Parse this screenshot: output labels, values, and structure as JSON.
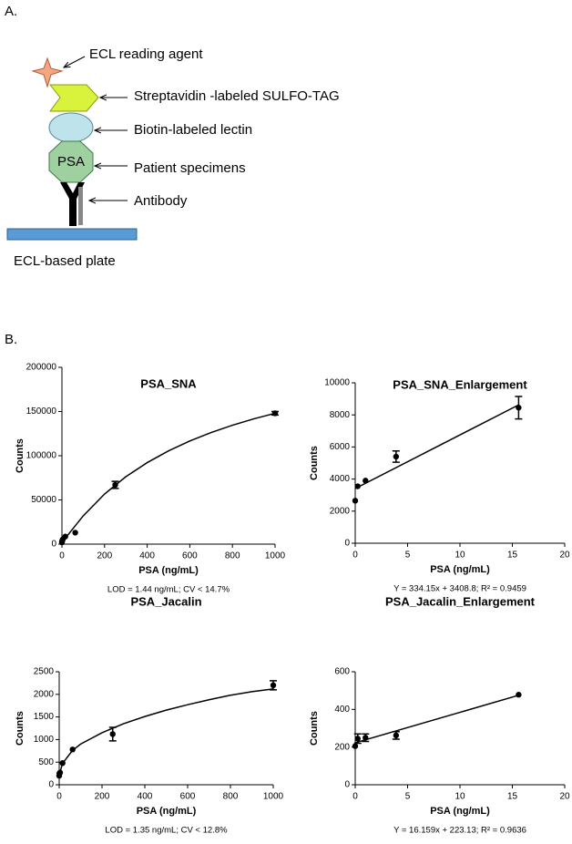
{
  "panel_a": {
    "label": "A.",
    "reading_agent": "ECL reading agent",
    "tag": "Streptavidin -labeled SULFO-TAG",
    "lectin": "Biotin-labeled lectin",
    "specimens": "Patient specimens",
    "psa": "PSA",
    "antibody": "Antibody",
    "plate": "ECL-based plate"
  },
  "panel_b": {
    "label": "B."
  },
  "chart_data": [
    {
      "type": "scatter",
      "title": "PSA_SNA",
      "x_label": "PSA (ng/mL)",
      "y_label": "Counts",
      "note": "LOD =  1.44 ng/mL; CV < 14.7%",
      "color": "#000000",
      "xlim": [
        0,
        1000
      ],
      "xticks": [
        0,
        200,
        400,
        600,
        800,
        1000
      ],
      "ylim": [
        0,
        200000
      ],
      "yticks": [
        0,
        50000,
        100000,
        150000,
        200000
      ],
      "x": [
        0,
        1,
        4,
        15.6,
        62.5,
        250,
        1000
      ],
      "values": [
        2000,
        3600,
        5400,
        8500,
        13000,
        67000,
        148000
      ],
      "errors": [
        null,
        null,
        null,
        null,
        null,
        4000,
        2000
      ],
      "fit": {
        "x": [
          0,
          100,
          200,
          300,
          400,
          500,
          600,
          700,
          800,
          900,
          1000
        ],
        "values": [
          2000,
          32000,
          56700,
          76300,
          92200,
          105500,
          116700,
          126200,
          134500,
          141700,
          148000
        ]
      }
    },
    {
      "type": "scatter",
      "title": "PSA_SNA_Enlargement",
      "x_label": "PSA (ng/mL)",
      "y_label": "Counts",
      "note": "Y = 334.15x + 3408.8; R² = 0.9459",
      "color": "#000000",
      "xlim": [
        0,
        20
      ],
      "xticks": [
        0,
        5,
        10,
        15,
        20
      ],
      "ylim": [
        0,
        10000
      ],
      "yticks": [
        0,
        2000,
        4000,
        6000,
        8000,
        10000
      ],
      "x": [
        0,
        0.24,
        0.98,
        3.9,
        15.6
      ],
      "values": [
        2650,
        3550,
        3900,
        5400,
        8450
      ],
      "errors": [
        null,
        null,
        null,
        350,
        700
      ],
      "fit": {
        "x": [
          0,
          15.6
        ],
        "values": [
          3409,
          8622
        ]
      }
    },
    {
      "type": "scatter",
      "title": "PSA_Jacalin",
      "x_label": "PSA (ng/mL)",
      "y_label": "Counts",
      "note": "LOD = 1.35 ng/mL; CV < 12.8%",
      "color": "#000000",
      "xlim": [
        0,
        1000
      ],
      "xticks": [
        0,
        200,
        400,
        600,
        800,
        1000
      ],
      "ylim": [
        0,
        2500
      ],
      "yticks": [
        0,
        500,
        1000,
        1500,
        2000,
        2500
      ],
      "x": [
        0,
        1,
        4,
        15.6,
        62.5,
        250,
        1000
      ],
      "values": [
        200,
        250,
        270,
        480,
        780,
        1120,
        2200
      ],
      "errors": [
        null,
        null,
        null,
        null,
        null,
        150,
        100
      ],
      "fit": {
        "x": [
          0,
          15,
          62.5,
          100,
          200,
          300,
          400,
          500,
          600,
          700,
          800,
          900,
          1000
        ],
        "values": [
          200,
          470,
          760,
          900,
          1150,
          1350,
          1510,
          1650,
          1770,
          1880,
          1980,
          2060,
          2120
        ]
      }
    },
    {
      "type": "scatter",
      "title": "PSA_Jacalin_Enlargement",
      "x_label": "PSA (ng/mL)",
      "y_label": "Counts",
      "note": "Y = 16.159x + 223.13; R² = 0.9636",
      "color": "#000000",
      "xlim": [
        0,
        20
      ],
      "xticks": [
        0,
        5,
        10,
        15,
        20
      ],
      "ylim": [
        0,
        600
      ],
      "yticks": [
        0,
        200,
        400,
        600
      ],
      "x": [
        0,
        0.24,
        0.98,
        3.9,
        15.6
      ],
      "values": [
        205,
        245,
        250,
        262,
        478
      ],
      "errors": [
        null,
        25,
        20,
        20,
        null
      ],
      "fit": {
        "x": [
          0,
          15.6
        ],
        "values": [
          223,
          475
        ]
      }
    }
  ]
}
